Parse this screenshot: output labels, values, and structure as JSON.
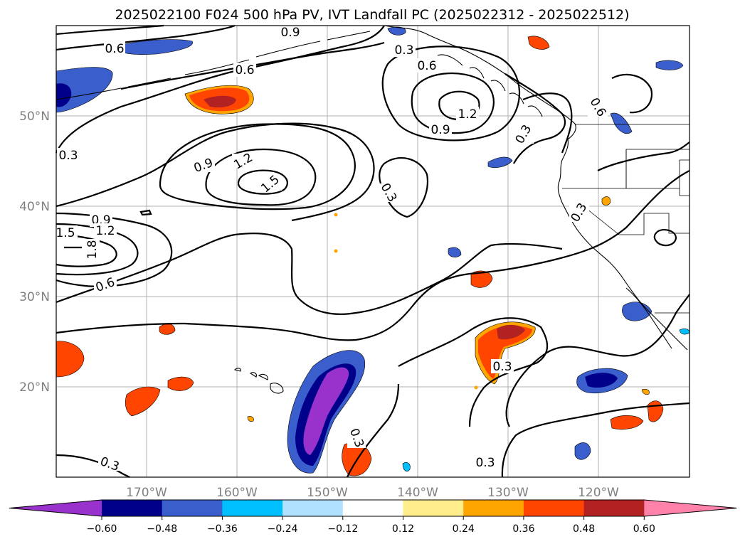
{
  "title": "2025022100 F024 500 hPa PV, IVT Landfall PC (2025022312 - 2025022512)",
  "longitude_labels": [
    "170°W",
    "160°W",
    "150°W",
    "140°W",
    "130°W",
    "120°W"
  ],
  "latitude_labels": [
    "50°N",
    "40°N",
    "30°N",
    "20°N"
  ],
  "colorbar": {
    "tick_labels": [
      "−0.60",
      "−0.48",
      "−0.36",
      "−0.24",
      "−0.12",
      "0.12",
      "0.24",
      "0.36",
      "0.48",
      "0.60"
    ],
    "colors": [
      "#9932cc",
      "#00008b",
      "#3a5fcd",
      "#00bfff",
      "#b0e2ff",
      "#ffffff",
      "#ffec8b",
      "#ffa500",
      "#ff4500",
      "#b22222",
      "#ff82ab"
    ],
    "extend": "both"
  },
  "contour_labels": {
    "c1": "0.6",
    "c2": "0.9",
    "c3": "0.3",
    "c4": "0.6",
    "c5": "0.6",
    "c6": "1.2",
    "c7": "0.9",
    "c8": "0.3",
    "c9": "0.6",
    "c10": "0.3",
    "c11": "0.9",
    "c12": "1.2",
    "c13": "1.5",
    "c14": "0.3",
    "c15": "0.3",
    "c16": "0.9",
    "c17": "1.5",
    "c18": "1.2",
    "c19": "1.8",
    "c20": "0.6",
    "c21": "0.3",
    "c22": "0.3",
    "c23": "0.3",
    "c24": "0.3"
  }
}
